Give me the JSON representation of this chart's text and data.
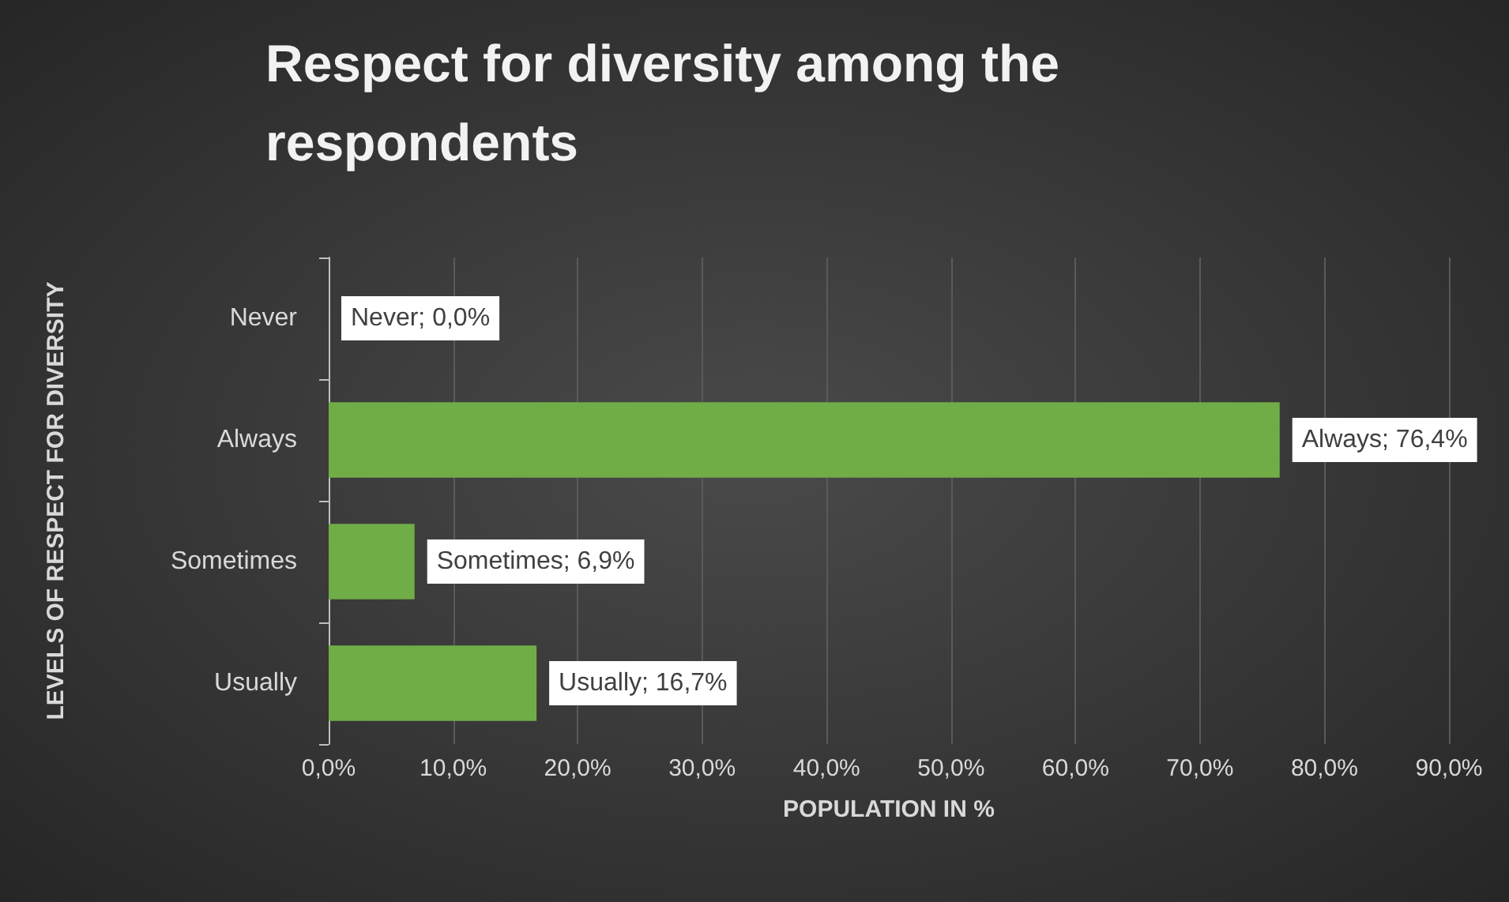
{
  "chart_data": {
    "type": "bar",
    "orientation": "horizontal",
    "title": "Respect for diversity among the respondents",
    "xlabel": "POPULATION IN %",
    "ylabel": "LEVELS OF RESPECT FOR DIVERSITY",
    "categories": [
      "Never",
      "Always",
      "Sometimes",
      "Usually"
    ],
    "values": [
      0,
      76.4,
      6.9,
      16.7
    ],
    "color": "#70ad47",
    "value_labels": [
      "Never; 0,0%",
      "Always; 76,4%",
      "Sometimes; 6,9%",
      "Usually; 16,7%"
    ],
    "xlim": [
      0,
      90
    ],
    "xticks": [
      {
        "value": 0,
        "label": "0,0%"
      },
      {
        "value": 10,
        "label": "10,0%"
      },
      {
        "value": 20,
        "label": "20,0%"
      },
      {
        "value": 30,
        "label": "30,0%"
      },
      {
        "value": 40,
        "label": "40,0%"
      },
      {
        "value": 50,
        "label": "50,0%"
      },
      {
        "value": 60,
        "label": "60,0%"
      },
      {
        "value": 70,
        "label": "70,0%"
      },
      {
        "value": 80,
        "label": "80,0%"
      },
      {
        "value": 90,
        "label": "90,0%"
      }
    ],
    "grid": "x"
  }
}
